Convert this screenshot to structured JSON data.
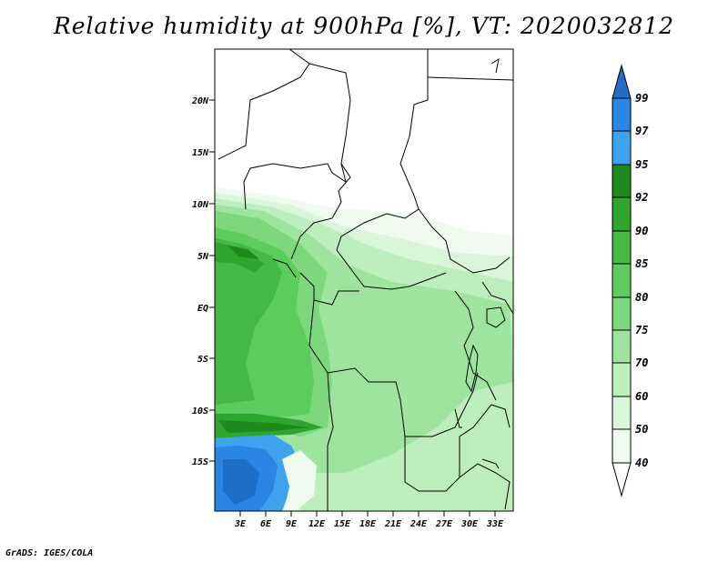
{
  "title": "Relative humidity at 900hPa [%], VT: 2020032812",
  "credit": "GrADS: IGES/COLA",
  "map": {
    "lat_labels": [
      "20N",
      "15N",
      "10N",
      "5N",
      "EQ",
      "5S",
      "10S",
      "15S"
    ],
    "lon_labels": [
      "3E",
      "6E",
      "9E",
      "12E",
      "15E",
      "18E",
      "21E",
      "24E",
      "27E",
      "30E",
      "33E"
    ]
  },
  "colorbar": {
    "levels": [
      "99",
      "97",
      "95",
      "92",
      "90",
      "85",
      "80",
      "75",
      "70",
      "60",
      "50",
      "40"
    ],
    "colors": {
      "99+": "#1f6fc7",
      "97-99": "#2b86e3",
      "95-97": "#3fa2ee",
      "92-95": "#1d8a1d",
      "90-92": "#2ea62e",
      "85-90": "#45b845",
      "80-85": "#5ccc5c",
      "75-80": "#7dd87d",
      "70-75": "#9ee39e",
      "60-70": "#bdeebd",
      "50-60": "#d9f6d9",
      "40-50": "#effbef",
      "<40": "#ffffff"
    }
  }
}
